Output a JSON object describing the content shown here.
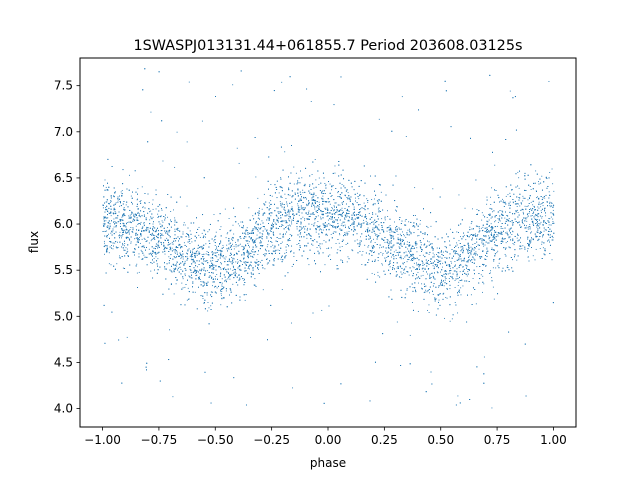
{
  "chart_data": {
    "type": "scatter",
    "title": "1SWASPJ013131.44+061855.7 Period 203608.03125s",
    "xlabel": "phase",
    "ylabel": "flux",
    "xlim": [
      -1.1,
      1.1
    ],
    "ylim": [
      3.8,
      7.8
    ],
    "x_ticks": [
      -1.0,
      -0.75,
      -0.5,
      -0.25,
      0.0,
      0.25,
      0.5,
      0.75,
      1.0
    ],
    "x_tick_labels": [
      "−1.00",
      "−0.75",
      "−0.50",
      "−0.25",
      "0.00",
      "0.25",
      "0.50",
      "0.75",
      "1.00"
    ],
    "y_ticks": [
      4.0,
      4.5,
      5.0,
      5.5,
      6.0,
      6.5,
      7.0,
      7.5
    ],
    "y_tick_labels": [
      "4.0",
      "4.5",
      "5.0",
      "5.5",
      "6.0",
      "6.5",
      "7.0",
      "7.5"
    ],
    "grid": false,
    "point_color": "#1f77b4",
    "series": [
      {
        "phase_range": [
          -1.0,
          1.0
        ],
        "profile": {
          "phase": [
            -1.0,
            -0.9,
            -0.75,
            -0.65,
            -0.5,
            -0.4,
            -0.3,
            -0.2,
            -0.1,
            0.0,
            0.1,
            0.25,
            0.35,
            0.5,
            0.6,
            0.7,
            0.8,
            0.9,
            1.0
          ],
          "flux": [
            6.05,
            6.0,
            5.85,
            5.7,
            5.5,
            5.6,
            5.85,
            6.05,
            6.1,
            6.1,
            6.05,
            5.85,
            5.7,
            5.5,
            5.6,
            5.85,
            6.0,
            6.05,
            6.08
          ]
        },
        "scatter_sigma": 0.22
      }
    ]
  }
}
